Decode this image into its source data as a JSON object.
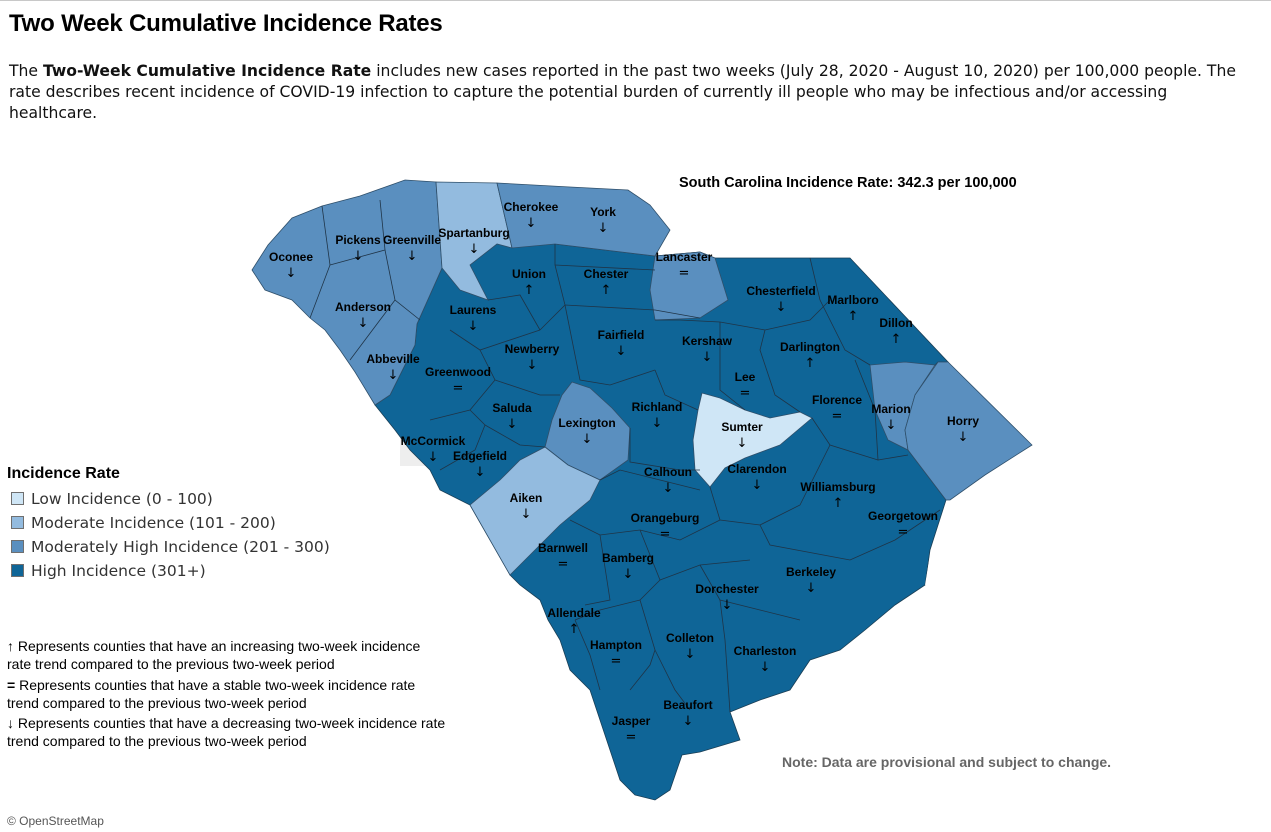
{
  "title": "Two Week Cumulative Incidence Rates",
  "description": {
    "pre": "The ",
    "bold": "Two-Week Cumulative Incidence Rate",
    "post": " includes new cases reported in the past two weeks (July 28, 2020 - August 10, 2020) per 100,000 people. The rate describes recent incidence of COVID-19 infection to capture the potential burden of currently ill people who may be infectious and/or accessing healthcare."
  },
  "state_rate": "South Carolina Incidence Rate: 342.3 per 100,000",
  "legend": {
    "title": "Incidence Rate",
    "items": [
      {
        "label": "Low Incidence (0 - 100)",
        "color": "#cfe6f6"
      },
      {
        "label": "Moderate Incidence (101 - 200)",
        "color": "#93bbdf"
      },
      {
        "label": "Moderately High Incidence (201 - 300)",
        "color": "#5a8fbf"
      },
      {
        "label": "High Incidence (301+)",
        "color": "#0f6597"
      }
    ]
  },
  "trend_legend": [
    {
      "symbol": "↑",
      "text": "Represents counties that have an increasing two-week incidence rate trend compared to the previous two-week period"
    },
    {
      "symbol": "=",
      "text": "Represents counties that have a stable two-week incidence rate trend compared to the previous two-week period"
    },
    {
      "symbol": "↓",
      "text": "Represents counties that have a decreasing two-week incidence rate trend compared to the previous two-week period"
    }
  ],
  "note": "Note: Data are provisional and subject to change.",
  "attribution": "© OpenStreetMap",
  "counties": [
    {
      "name": "Oconee",
      "trend": "↓",
      "category": "moderately-high"
    },
    {
      "name": "Pickens",
      "trend": "↓",
      "category": "moderately-high"
    },
    {
      "name": "Greenville",
      "trend": "↓",
      "category": "moderately-high"
    },
    {
      "name": "Spartanburg",
      "trend": "↓",
      "category": "moderate"
    },
    {
      "name": "Cherokee",
      "trend": "↓",
      "category": "moderately-high"
    },
    {
      "name": "York",
      "trend": "↓",
      "category": "moderately-high"
    },
    {
      "name": "Lancaster",
      "trend": "=",
      "category": "moderately-high"
    },
    {
      "name": "Chesterfield",
      "trend": "↓",
      "category": "high"
    },
    {
      "name": "Marlboro",
      "trend": "↑",
      "category": "high"
    },
    {
      "name": "Dillon",
      "trend": "↑",
      "category": "high"
    },
    {
      "name": "Anderson",
      "trend": "↓",
      "category": "moderately-high"
    },
    {
      "name": "Abbeville",
      "trend": "↓",
      "category": "moderately-high"
    },
    {
      "name": "Laurens",
      "trend": "↓",
      "category": "high"
    },
    {
      "name": "Union",
      "trend": "↑",
      "category": "high"
    },
    {
      "name": "Chester",
      "trend": "↑",
      "category": "high"
    },
    {
      "name": "Fairfield",
      "trend": "↓",
      "category": "high"
    },
    {
      "name": "Kershaw",
      "trend": "↓",
      "category": "high"
    },
    {
      "name": "Darlington",
      "trend": "↑",
      "category": "high"
    },
    {
      "name": "Newberry",
      "trend": "↓",
      "category": "high"
    },
    {
      "name": "Greenwood",
      "trend": "=",
      "category": "high"
    },
    {
      "name": "Lee",
      "trend": "=",
      "category": "high"
    },
    {
      "name": "Florence",
      "trend": "=",
      "category": "high"
    },
    {
      "name": "Marion",
      "trend": "↓",
      "category": "moderately-high"
    },
    {
      "name": "Horry",
      "trend": "↓",
      "category": "moderately-high"
    },
    {
      "name": "Saluda",
      "trend": "↓",
      "category": "high"
    },
    {
      "name": "Lexington",
      "trend": "↓",
      "category": "moderately-high"
    },
    {
      "name": "Richland",
      "trend": "↓",
      "category": "high"
    },
    {
      "name": "Sumter",
      "trend": "↓",
      "category": "low"
    },
    {
      "name": "McCormick",
      "trend": "↓",
      "category": "high"
    },
    {
      "name": "Edgefield",
      "trend": "↓",
      "category": "high"
    },
    {
      "name": "Calhoun",
      "trend": "↓",
      "category": "high"
    },
    {
      "name": "Clarendon",
      "trend": "↓",
      "category": "high"
    },
    {
      "name": "Aiken",
      "trend": "↓",
      "category": "moderate"
    },
    {
      "name": "Williamsburg",
      "trend": "↑",
      "category": "high"
    },
    {
      "name": "Orangeburg",
      "trend": "=",
      "category": "high"
    },
    {
      "name": "Georgetown",
      "trend": "=",
      "category": "high"
    },
    {
      "name": "Barnwell",
      "trend": "=",
      "category": "high"
    },
    {
      "name": "Bamberg",
      "trend": "↓",
      "category": "high"
    },
    {
      "name": "Berkeley",
      "trend": "↓",
      "category": "high"
    },
    {
      "name": "Dorchester",
      "trend": "↓",
      "category": "high"
    },
    {
      "name": "Allendale",
      "trend": "↑",
      "category": "high"
    },
    {
      "name": "Hampton",
      "trend": "=",
      "category": "high"
    },
    {
      "name": "Colleton",
      "trend": "↓",
      "category": "high"
    },
    {
      "name": "Charleston",
      "trend": "↓",
      "category": "high"
    },
    {
      "name": "Beaufort",
      "trend": "↓",
      "category": "high"
    },
    {
      "name": "Jasper",
      "trend": "=",
      "category": "high"
    }
  ]
}
